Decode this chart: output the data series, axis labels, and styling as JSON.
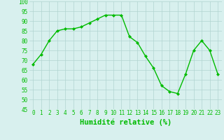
{
  "x": [
    0,
    1,
    2,
    3,
    4,
    5,
    6,
    7,
    8,
    9,
    10,
    11,
    12,
    13,
    14,
    15,
    16,
    17,
    18,
    19,
    20,
    21,
    22,
    23
  ],
  "y": [
    68,
    73,
    80,
    85,
    86,
    86,
    87,
    89,
    91,
    93,
    93,
    93,
    82,
    79,
    72,
    66,
    57,
    54,
    53,
    63,
    75,
    80,
    75,
    63
  ],
  "line_color": "#00bb00",
  "marker": "D",
  "marker_size": 2.0,
  "line_width": 1.0,
  "bg_color": "#d8f0ee",
  "grid_color": "#b0d4d0",
  "xlabel": "Humidité relative (%)",
  "xlabel_color": "#00bb00",
  "ylim": [
    45,
    100
  ],
  "xlim": [
    -0.5,
    23.5
  ],
  "yticks": [
    45,
    50,
    55,
    60,
    65,
    70,
    75,
    80,
    85,
    90,
    95,
    100
  ],
  "xticks": [
    0,
    1,
    2,
    3,
    4,
    5,
    6,
    7,
    8,
    9,
    10,
    11,
    12,
    13,
    14,
    15,
    16,
    17,
    18,
    19,
    20,
    21,
    22,
    23
  ],
  "tick_label_fontsize": 5.5,
  "xlabel_fontsize": 7.5
}
